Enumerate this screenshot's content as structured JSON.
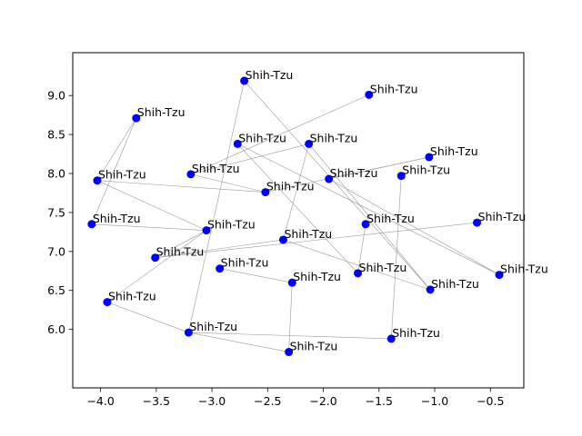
{
  "chart_data": {
    "type": "scatter",
    "title": "",
    "xlabel": "",
    "ylabel": "",
    "xlim": [
      -4.25,
      -0.2
    ],
    "ylim": [
      5.25,
      9.55
    ],
    "xticks": [
      -4.0,
      -3.5,
      -3.0,
      -2.5,
      -2.0,
      -1.5,
      -1.0,
      -0.5
    ],
    "xtick_labels": [
      "−4.0",
      "−3.5",
      "−3.0",
      "−2.5",
      "−2.0",
      "−1.5",
      "−1.0",
      "−0.5"
    ],
    "yticks": [
      6.0,
      6.5,
      7.0,
      7.5,
      8.0,
      8.5,
      9.0
    ],
    "ytick_labels": [
      "6.0",
      "6.5",
      "7.0",
      "7.5",
      "8.0",
      "8.5",
      "9.0"
    ],
    "grid": false,
    "point_color": "#0000ff",
    "edge_color": "#999999",
    "points": [
      {
        "x": -2.71,
        "y": 9.19,
        "label": "Shih-Tzu"
      },
      {
        "x": -1.59,
        "y": 9.01,
        "label": "Shih-Tzu"
      },
      {
        "x": -3.68,
        "y": 8.71,
        "label": "Shih-Tzu"
      },
      {
        "x": -2.77,
        "y": 8.38,
        "label": "Shih-Tzu"
      },
      {
        "x": -2.13,
        "y": 8.38,
        "label": "Shih-Tzu"
      },
      {
        "x": -1.05,
        "y": 8.21,
        "label": "Shih-Tzu"
      },
      {
        "x": -3.19,
        "y": 7.99,
        "label": "Shih-Tzu"
      },
      {
        "x": -1.3,
        "y": 7.97,
        "label": "Shih-Tzu"
      },
      {
        "x": -1.95,
        "y": 7.93,
        "label": "Shih-Tzu"
      },
      {
        "x": -4.03,
        "y": 7.91,
        "label": "Shih-Tzu"
      },
      {
        "x": -2.52,
        "y": 7.76,
        "label": "Shih-Tzu"
      },
      {
        "x": -0.62,
        "y": 7.37,
        "label": "Shih-Tzu"
      },
      {
        "x": -1.62,
        "y": 7.35,
        "label": "Shih-Tzu"
      },
      {
        "x": -4.08,
        "y": 7.35,
        "label": "Shih-Tzu"
      },
      {
        "x": -3.05,
        "y": 7.27,
        "label": "Shih-Tzu"
      },
      {
        "x": -2.36,
        "y": 7.15,
        "label": "Shih-Tzu"
      },
      {
        "x": -3.51,
        "y": 6.92,
        "label": "Shih-Tzu"
      },
      {
        "x": -2.93,
        "y": 6.78,
        "label": "Shih-Tzu"
      },
      {
        "x": -1.69,
        "y": 6.72,
        "label": "Shih-Tzu"
      },
      {
        "x": -0.42,
        "y": 6.7,
        "label": "Shih-Tzu"
      },
      {
        "x": -2.28,
        "y": 6.6,
        "label": "Shih-Tzu"
      },
      {
        "x": -1.04,
        "y": 6.51,
        "label": "Shih-Tzu"
      },
      {
        "x": -3.94,
        "y": 6.35,
        "label": "Shih-Tzu"
      },
      {
        "x": -3.21,
        "y": 5.96,
        "label": "Shih-Tzu"
      },
      {
        "x": -1.39,
        "y": 5.88,
        "label": "Shih-Tzu"
      },
      {
        "x": -2.31,
        "y": 5.71,
        "label": "Shih-Tzu"
      }
    ],
    "edges": [
      [
        0,
        23
      ],
      [
        0,
        21
      ],
      [
        1,
        6
      ],
      [
        2,
        9
      ],
      [
        3,
        18
      ],
      [
        3,
        19
      ],
      [
        4,
        15
      ],
      [
        4,
        21
      ],
      [
        5,
        8
      ],
      [
        5,
        10
      ],
      [
        6,
        4
      ],
      [
        7,
        24
      ],
      [
        8,
        19
      ],
      [
        9,
        10
      ],
      [
        9,
        14
      ],
      [
        10,
        6
      ],
      [
        11,
        16
      ],
      [
        12,
        18
      ],
      [
        13,
        14
      ],
      [
        14,
        22
      ],
      [
        15,
        16
      ],
      [
        16,
        14
      ],
      [
        17,
        20
      ],
      [
        20,
        25
      ],
      [
        22,
        23
      ],
      [
        23,
        24
      ],
      [
        25,
        23
      ],
      [
        13,
        2
      ],
      [
        15,
        21
      ]
    ]
  }
}
